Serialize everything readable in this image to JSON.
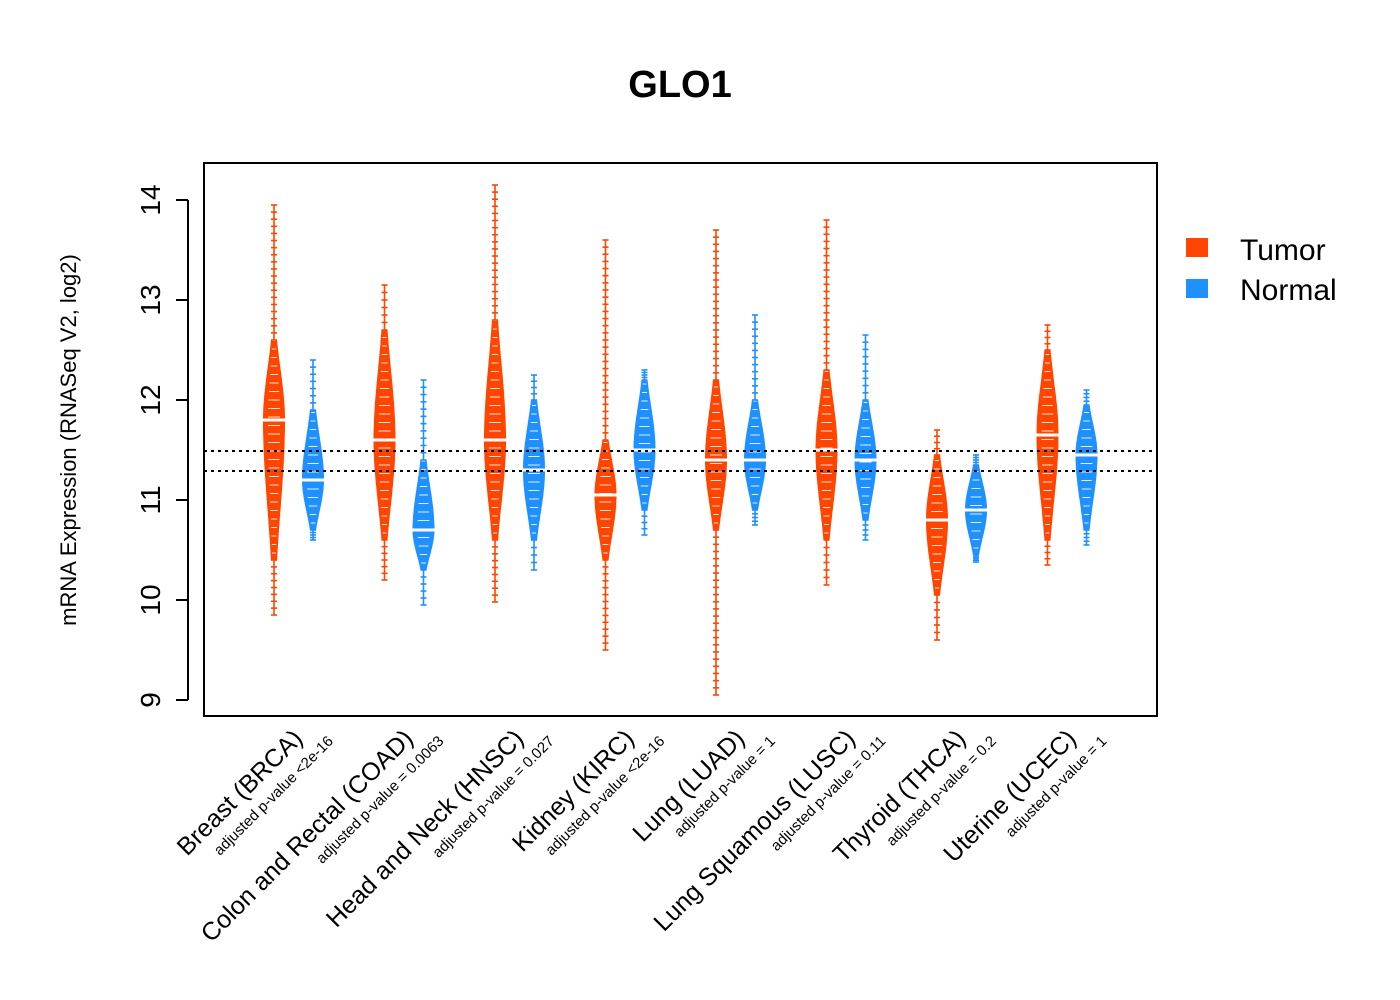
{
  "colors": {
    "tumor": "#FF4500",
    "normal": "#1E90FF"
  },
  "chart_data": {
    "type": "violin",
    "title": "GLO1",
    "ylabel": "mRNA Expression (RNASeq V2, log2)",
    "ylim": [
      9,
      14
    ],
    "yticks": [
      "9",
      "10",
      "11",
      "12",
      "13",
      "14"
    ],
    "reference_lines": [
      11.29,
      11.49
    ],
    "legend": {
      "placement": "right",
      "entries": [
        "Tumor",
        "Normal"
      ]
    },
    "categories": [
      {
        "name": "Breast (BRCA)",
        "pvalue": "adjusted p-value <2e-16",
        "tumor": {
          "median": 11.8,
          "min": 9.85,
          "max": 13.95,
          "core_lo": 10.4,
          "core_hi": 12.6
        },
        "normal": {
          "median": 11.2,
          "min": 10.6,
          "max": 12.4,
          "core_lo": 10.7,
          "core_hi": 11.9
        }
      },
      {
        "name": "Colon and Rectal (COAD)",
        "pvalue": "adjusted p-value = 0.0063",
        "tumor": {
          "median": 11.6,
          "min": 10.2,
          "max": 13.15,
          "core_lo": 10.6,
          "core_hi": 12.7
        },
        "normal": {
          "median": 10.7,
          "min": 9.95,
          "max": 12.2,
          "core_lo": 10.3,
          "core_hi": 11.4
        }
      },
      {
        "name": "Head and Neck (HNSC)",
        "pvalue": "adjusted p-value = 0.027",
        "tumor": {
          "median": 11.6,
          "min": 9.98,
          "max": 14.15,
          "core_lo": 10.6,
          "core_hi": 12.8
        },
        "normal": {
          "median": 11.3,
          "min": 10.3,
          "max": 12.25,
          "core_lo": 10.6,
          "core_hi": 12.0
        }
      },
      {
        "name": "Kidney (KIRC)",
        "pvalue": "adjusted p-value <2e-16",
        "tumor": {
          "median": 11.05,
          "min": 9.5,
          "max": 13.6,
          "core_lo": 10.4,
          "core_hi": 11.6
        },
        "normal": {
          "median": 11.5,
          "min": 10.65,
          "max": 12.3,
          "core_lo": 10.9,
          "core_hi": 12.2
        }
      },
      {
        "name": "Lung (LUAD)",
        "pvalue": "adjusted p-value = 1",
        "tumor": {
          "median": 11.4,
          "min": 9.05,
          "max": 13.7,
          "core_lo": 10.7,
          "core_hi": 12.2
        },
        "normal": {
          "median": 11.4,
          "min": 10.75,
          "max": 12.85,
          "core_lo": 10.9,
          "core_hi": 12.0
        }
      },
      {
        "name": "Lung Squamous (LUSC)",
        "pvalue": "adjusted p-value = 0.11",
        "tumor": {
          "median": 11.5,
          "min": 10.15,
          "max": 13.8,
          "core_lo": 10.6,
          "core_hi": 12.3
        },
        "normal": {
          "median": 11.4,
          "min": 10.6,
          "max": 12.65,
          "core_lo": 10.8,
          "core_hi": 12.0
        }
      },
      {
        "name": "Thyroid (THCA)",
        "pvalue": "adjusted p-value = 0.2",
        "tumor": {
          "median": 10.8,
          "min": 9.6,
          "max": 11.7,
          "core_lo": 10.05,
          "core_hi": 11.45
        },
        "normal": {
          "median": 10.9,
          "min": 10.38,
          "max": 11.45,
          "core_lo": 10.45,
          "core_hi": 11.35
        }
      },
      {
        "name": "Uterine (UCEC)",
        "pvalue": "adjusted p-value = 1",
        "tumor": {
          "median": 11.65,
          "min": 10.35,
          "max": 12.75,
          "core_lo": 10.6,
          "core_hi": 12.5
        },
        "normal": {
          "median": 11.45,
          "min": 10.55,
          "max": 12.1,
          "core_lo": 10.7,
          "core_hi": 11.95
        }
      }
    ]
  }
}
